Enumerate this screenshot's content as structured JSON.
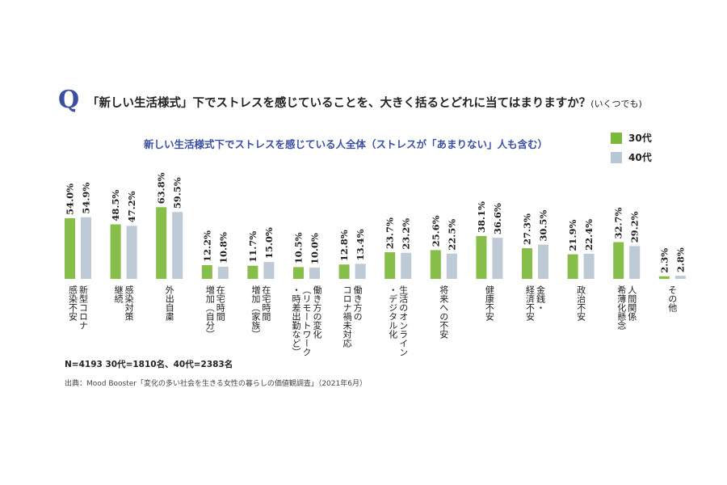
{
  "header": {
    "q_mark": "Q",
    "question_main": "「新しい生活様式」下でストレスを感じていることを、大きく括るとどれに当てはまりますか？",
    "question_note": "(いくつでも)"
  },
  "colors": {
    "series_30": "#7cb93a",
    "series_40": "#b9c6d3"
  },
  "chart_data": {
    "type": "bar",
    "title": "新しい生活様式下でストレスを感じている人全体（ストレスが「あまりない」人も含む）",
    "categories": [
      "新型コロナ\n感染不安",
      "感染対策\n継続",
      "外出自粛",
      "在宅時間\n増加（自分）",
      "在宅時間\n増加（家族）",
      "働き方の変化\n（リモートワーク\n・時差出勤など）",
      "働き方の\nコロナ禍未対応",
      "生活のオンライン\n・デジタル化",
      "将来への不安",
      "健康不安",
      "金銭・\n経済不安",
      "政治不安",
      "人間関係\n希薄化懸念",
      "その他"
    ],
    "series": [
      {
        "name": "30代",
        "values": [
          54.0,
          48.5,
          63.8,
          12.2,
          11.7,
          10.5,
          12.8,
          23.7,
          25.6,
          38.1,
          27.3,
          21.9,
          32.7,
          2.3
        ],
        "labels": [
          "54.0%",
          "48.5%",
          "63.8%",
          "12.2%",
          "11.7%",
          "10.5%",
          "12.8%",
          "23.7%",
          "25.6%",
          "38.1%",
          "27.3%",
          "21.9%",
          "32.7%",
          "2.3%"
        ]
      },
      {
        "name": "40代",
        "values": [
          54.9,
          47.2,
          59.5,
          10.8,
          15.0,
          10.0,
          13.4,
          23.2,
          22.5,
          36.6,
          30.5,
          22.4,
          29.2,
          2.8
        ],
        "labels": [
          "54.9%",
          "47.2%",
          "59.5%",
          "10.8%",
          "15.0%",
          "10.0%",
          "13.4%",
          "23.2%",
          "22.5%",
          "36.6%",
          "30.5%",
          "22.4%",
          "29.2%",
          "2.8%"
        ]
      }
    ],
    "ylim": [
      0,
      70
    ],
    "legend": "top-right"
  },
  "footer": {
    "note": "N=4193 30代=1810名、40代=2383名",
    "source": "出典：Mood Booster「変化の多い社会を生きる女性の暮らしの価値観調査」（2021年6月）"
  }
}
